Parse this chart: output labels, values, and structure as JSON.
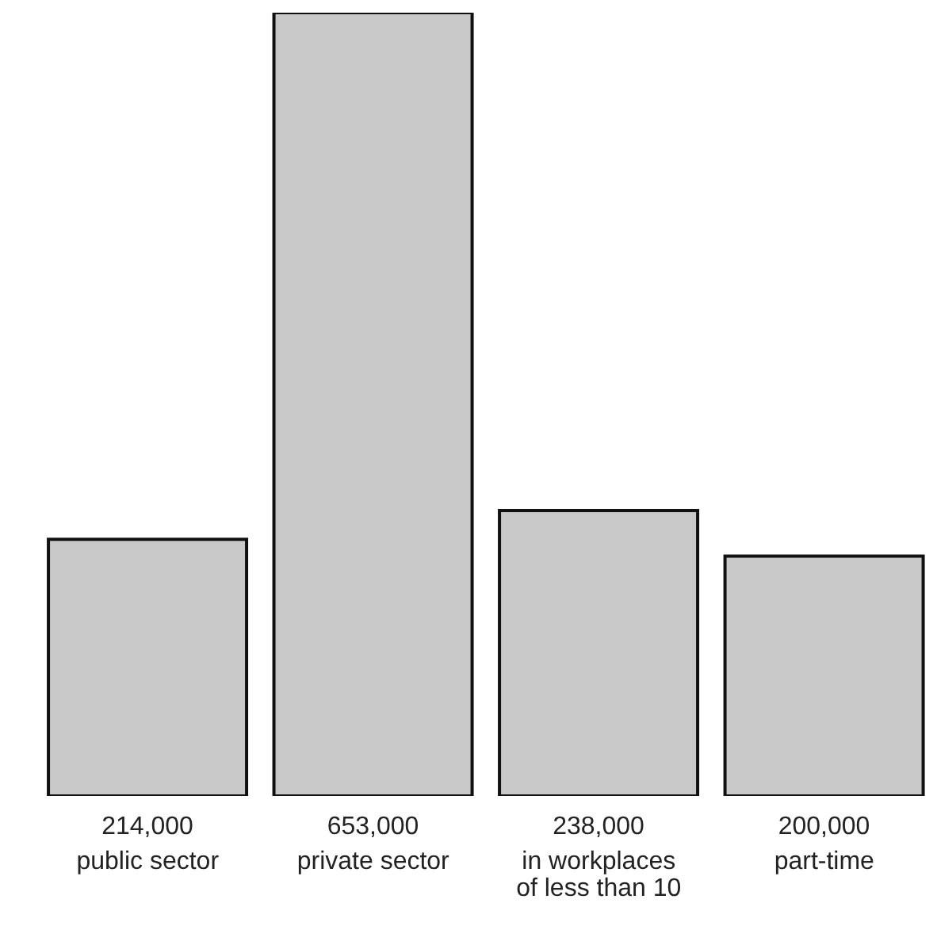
{
  "chart_data": {
    "type": "bar",
    "categories": [
      "public sector",
      "private sector",
      "in workplaces of less than 10",
      "part-time"
    ],
    "values": [
      214000,
      653000,
      238000,
      200000
    ],
    "value_labels": [
      "214,000",
      "653,000",
      "238,000",
      "200,000"
    ],
    "color": "#c9c9c9"
  }
}
